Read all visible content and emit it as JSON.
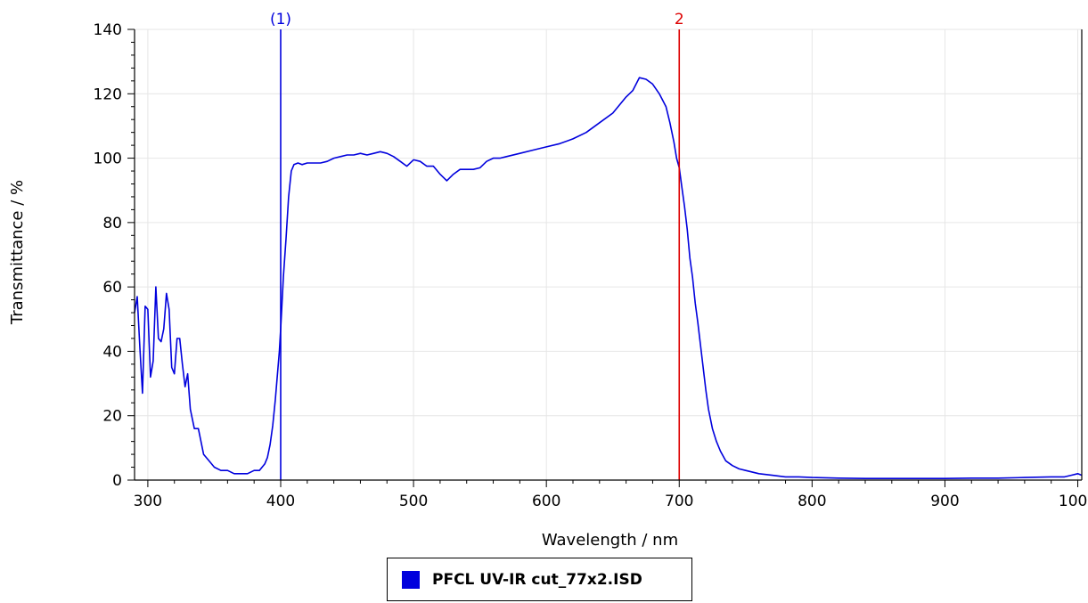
{
  "chart_data": {
    "type": "line",
    "xlabel": "Wavelength / nm",
    "ylabel": "Transmittance / %",
    "xlim": [
      290,
      1003
    ],
    "ylim": [
      0,
      140
    ],
    "x_ticks": [
      300,
      400,
      500,
      600,
      700,
      800,
      900,
      1000
    ],
    "y_ticks": [
      0,
      20,
      40,
      60,
      80,
      100,
      120,
      140
    ],
    "grid": true,
    "legend_position": "bottom-center",
    "markers": [
      {
        "label": "(1)",
        "x": 400,
        "color": "#0000dd"
      },
      {
        "label": "2",
        "x": 700,
        "color": "#dd0000"
      }
    ],
    "series": [
      {
        "name": "PFCL UV-IR cut_77x2.ISD",
        "color": "#0000dd",
        "x": [
          290,
          292,
          294,
          296,
          298,
          300,
          302,
          304,
          306,
          308,
          310,
          312,
          314,
          316,
          318,
          320,
          322,
          324,
          326,
          328,
          330,
          332,
          335,
          338,
          342,
          346,
          350,
          355,
          360,
          365,
          370,
          375,
          380,
          384,
          388,
          390,
          392,
          394,
          396,
          398,
          399,
          400,
          401,
          402,
          404,
          406,
          408,
          410,
          413,
          416,
          420,
          425,
          430,
          435,
          440,
          445,
          450,
          455,
          460,
          465,
          470,
          475,
          480,
          485,
          490,
          495,
          500,
          505,
          510,
          515,
          520,
          525,
          530,
          535,
          540,
          545,
          550,
          555,
          560,
          565,
          570,
          580,
          590,
          600,
          610,
          620,
          630,
          640,
          650,
          660,
          665,
          670,
          675,
          680,
          685,
          690,
          693,
          696,
          698,
          700,
          702,
          704,
          706,
          708,
          710,
          712,
          714,
          716,
          718,
          720,
          722,
          725,
          728,
          731,
          735,
          740,
          745,
          750,
          760,
          770,
          780,
          790,
          800,
          820,
          840,
          860,
          880,
          900,
          920,
          940,
          960,
          980,
          990,
          995,
          1000,
          1003
        ],
        "values": [
          52,
          57,
          41,
          27,
          54,
          53,
          32,
          37,
          60,
          44,
          43,
          47,
          58,
          53,
          35,
          33,
          44,
          44,
          36,
          29,
          33,
          22,
          16,
          16,
          8,
          6,
          4,
          3,
          3,
          2,
          2,
          2,
          3,
          3,
          5,
          7,
          11,
          17,
          25,
          35,
          40,
          47,
          55,
          63,
          75,
          88,
          96,
          98,
          98.5,
          98,
          98.5,
          98.5,
          98.5,
          99,
          100,
          100.5,
          101,
          101,
          101.5,
          101,
          101.5,
          102,
          101.5,
          100.5,
          99,
          97.5,
          99.5,
          99,
          97.5,
          97.5,
          95,
          93,
          95,
          96.5,
          96.5,
          96.5,
          97,
          99,
          100,
          100,
          100.5,
          101.5,
          102.5,
          103.5,
          104.5,
          106,
          108,
          111,
          114,
          119,
          121,
          125,
          124.5,
          123,
          120,
          116,
          111,
          105,
          100,
          97,
          91,
          85,
          78,
          69,
          63,
          55,
          49,
          42,
          35,
          28,
          22,
          16,
          12,
          9,
          6,
          4.5,
          3.5,
          3,
          2,
          1.5,
          1,
          1,
          0.8,
          0.6,
          0.5,
          0.5,
          0.5,
          0.5,
          0.6,
          0.6,
          0.8,
          1,
          1,
          1.5,
          2,
          1.5
        ]
      }
    ]
  }
}
